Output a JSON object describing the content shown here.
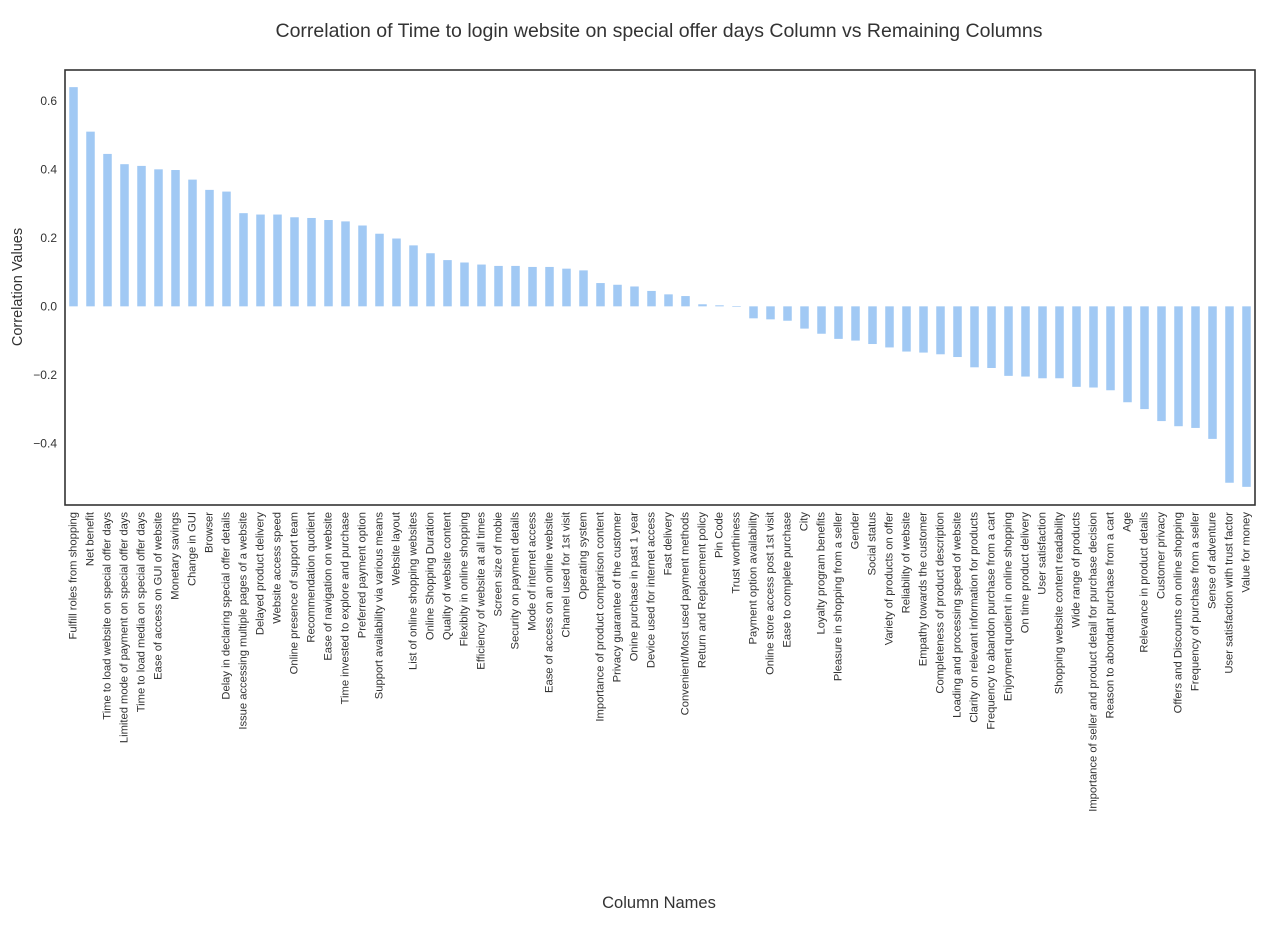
{
  "chart_data": {
    "type": "bar",
    "title": "Correlation of Time to login website on special offer days Column vs Remaining Columns",
    "xlabel": "Column Names",
    "ylabel": "Correlation Values",
    "ylim": [
      -0.58,
      0.69
    ],
    "yticks": [
      0.6,
      0.4,
      0.2,
      0.0,
      -0.2,
      -0.4
    ],
    "ytick_labels": [
      "0.6",
      "0.4",
      "0.2",
      "0.0",
      "−0.2",
      "−0.4"
    ],
    "grid": false,
    "bar_color": "#a1c9f4",
    "categories": [
      "Fulfill roles from shopping",
      "Net benefit",
      "Time to load website on special offer days",
      "Limited mode of payment on special offer days",
      "Time to load media on special offer days",
      "Ease of access on GUI of website",
      "Monetary savings",
      "Change in GUI",
      "Browser",
      "Delay in declaring special offer details",
      "Issue accessing multiple pages of a website",
      "Delayed product delivery",
      "Website access speed",
      "Online presence of support team",
      "Recommendation quotient",
      "Ease of navigation on website",
      "Time invested to explore and purchase",
      "Preferred payment option",
      "Support availability via various means",
      "Website layout",
      "List of online shopping websites",
      "Online Shopping Duration",
      "Quality of website content",
      "Flexibity in online shopping",
      "Efficiency of website at all times",
      "Screen size of mobie",
      "Security on payment details",
      "Mode of internet access",
      "Ease of access on an online website",
      "Channel used for 1st visit",
      "Operating system",
      "Importance of product comparison content",
      "Privacy guarantee of the customer",
      "Onine purchase in past 1 year",
      "Device used for internet access",
      "Fast delivery",
      "Convenient/Most used payment methods",
      "Return and Replacement policy",
      "Pin Code",
      "Trust worthiness",
      "Payment option availability",
      "Online store access post 1st visit",
      "Ease to complete purchase",
      "City",
      "Loyalty program benefits",
      "Pleasure in shopping from a seller",
      "Gender",
      "Social status",
      "Variety of products on offer",
      "Reliability of website",
      "Empathy towards the customer",
      "Completeness of product description",
      "Loading and processing speed of website",
      "Clarity on relevant information for products",
      "Frequency to abandon purchase from a cart",
      "Enjoyment quotient in online shopping",
      "On time product delivery",
      "User satisfaction",
      "Shopping website content readability",
      "Wide range of products",
      "Importance of seller and product detail for purchase decision",
      "Reason to abondant purchase from a cart",
      "Age",
      "Relevance in product details",
      "Customer privacy",
      "Offers and Discounts on online shopping",
      "Frequency of purchase from a seller",
      "Sense of adventure",
      "User satisfaction with trust factor",
      "Value for money"
    ],
    "values": [
      0.64,
      0.51,
      0.445,
      0.415,
      0.41,
      0.4,
      0.398,
      0.37,
      0.34,
      0.335,
      0.272,
      0.268,
      0.268,
      0.26,
      0.258,
      0.252,
      0.248,
      0.236,
      0.212,
      0.198,
      0.178,
      0.155,
      0.135,
      0.128,
      0.122,
      0.118,
      0.118,
      0.115,
      0.115,
      0.11,
      0.105,
      0.068,
      0.063,
      0.058,
      0.045,
      0.035,
      0.03,
      0.006,
      0.003,
      0.0,
      -0.035,
      -0.038,
      -0.042,
      -0.065,
      -0.08,
      -0.095,
      -0.1,
      -0.11,
      -0.12,
      -0.132,
      -0.135,
      -0.14,
      -0.148,
      -0.178,
      -0.18,
      -0.203,
      -0.205,
      -0.21,
      -0.21,
      -0.235,
      -0.237,
      -0.245,
      -0.28,
      -0.3,
      -0.335,
      -0.35,
      -0.355,
      -0.387,
      -0.515,
      -0.527
    ]
  }
}
